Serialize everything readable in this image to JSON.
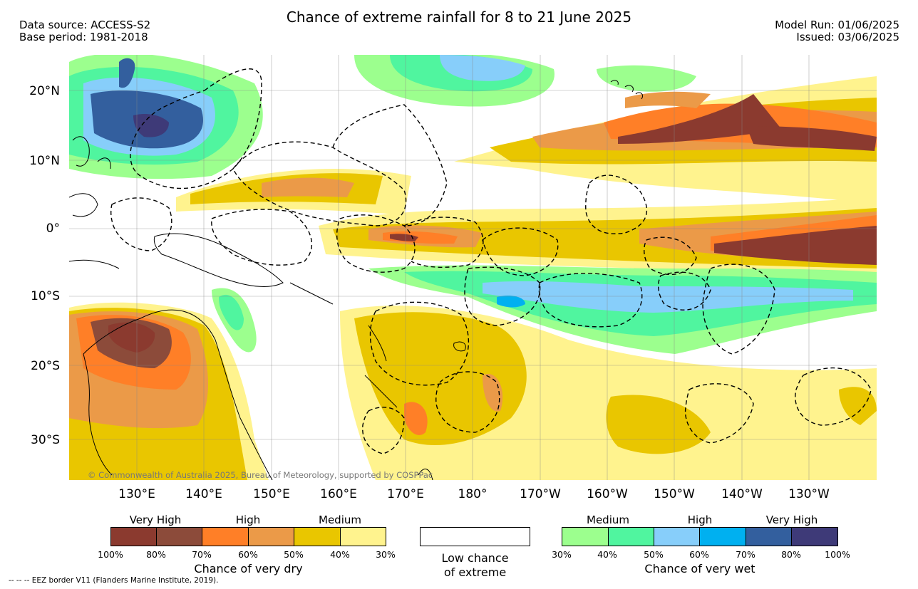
{
  "header": {
    "title": "Chance of extreme rainfall for 8 to 21 June 2025",
    "data_source": "Data source: ACCESS-S2",
    "base_period": "Base period: 1981-2018",
    "model_run": "Model Run: 01/06/2025",
    "issued": "Issued: 03/06/2025"
  },
  "map": {
    "lat_labels": [
      "20°N",
      "10°N",
      "0°",
      "10°S",
      "20°S",
      "30°S"
    ],
    "lon_labels": [
      "130°E",
      "140°E",
      "150°E",
      "160°E",
      "170°E",
      "180°",
      "170°W",
      "160°W",
      "150°W",
      "140°W",
      "130°W"
    ],
    "copyright": "© Commonwealth of Australia 2025, Bureau of Meteorology, supported by COSPPac",
    "eez_note": "-- -- -- EEZ border V11 (Flanders Marine Institute, 2019)."
  },
  "legend": {
    "dry": {
      "title": "Chance of very dry",
      "categories": [
        "Very High",
        "High",
        "Medium"
      ],
      "ticks": [
        "100%",
        "80%",
        "70%",
        "60%",
        "50%",
        "40%",
        "30%"
      ],
      "colors": [
        "#8B3A2F",
        "#8C4B3A",
        "#FF7F27",
        "#EB9A48",
        "#E9C600",
        "#FFF38E"
      ]
    },
    "neutral": {
      "label_line1": "Low chance",
      "label_line2": "of extreme"
    },
    "wet": {
      "title": "Chance of very wet",
      "categories": [
        "Medium",
        "High",
        "Very High"
      ],
      "ticks": [
        "30%",
        "40%",
        "50%",
        "60%",
        "70%",
        "80%",
        "100%"
      ],
      "colors": [
        "#9CFF8E",
        "#50F59F",
        "#87CEFA",
        "#00B0F0",
        "#335F9E",
        "#3E3A78"
      ]
    }
  }
}
